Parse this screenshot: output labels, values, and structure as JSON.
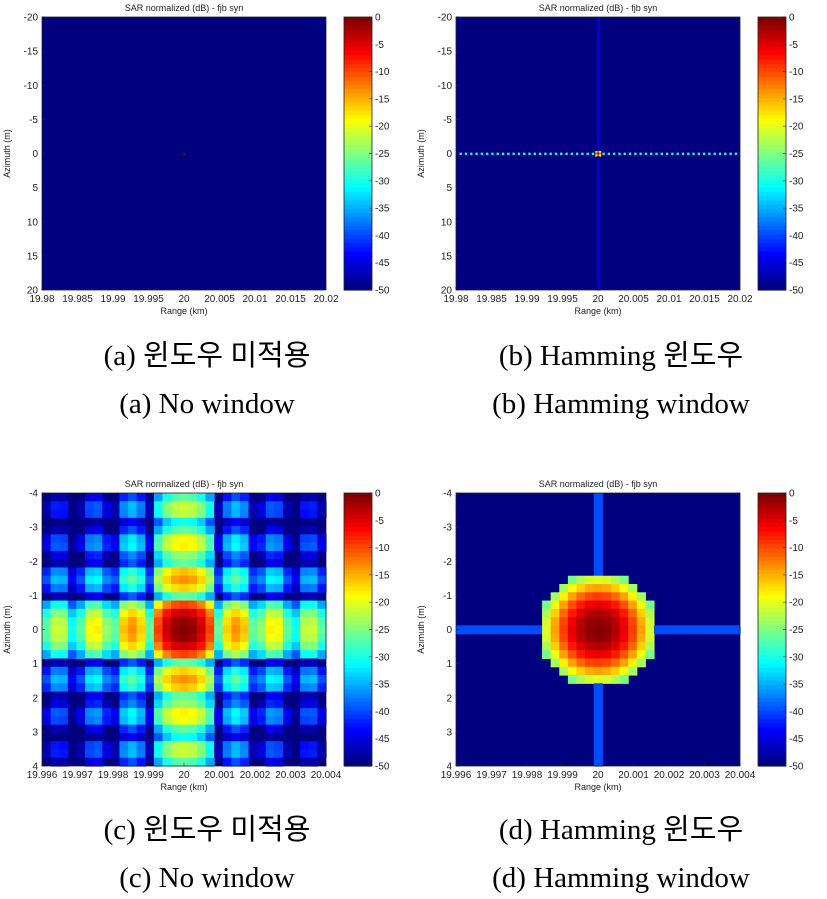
{
  "captions": [
    {
      "ko": "(a) 윈도우 미적용",
      "en": "(a) No window"
    },
    {
      "ko": "(b) Hamming 윈도우",
      "en": "(b) Hamming window"
    },
    {
      "ko": "(c) 윈도우 미적용",
      "en": "(c) No window"
    },
    {
      "ko": "(d) Hamming 윈도우",
      "en": "(d) Hamming window"
    }
  ],
  "chart_data": [
    {
      "type": "heatmap",
      "title": "SAR normalized (dB) - fjb syn",
      "xlabel": "Range (km)",
      "ylabel": "Azimuth (m)",
      "xlim": [
        19.98,
        20.02
      ],
      "ylim": [
        -20,
        20
      ],
      "xticks": [
        "19.98",
        "19.985",
        "19.99",
        "19.995",
        "20",
        "20.005",
        "20.01",
        "20.015",
        "20.02"
      ],
      "yticks": [
        "-20",
        "-15",
        "-10",
        "-5",
        "0",
        "5",
        "10",
        "15",
        "20"
      ],
      "colorbar": {
        "min": -50,
        "max": 0,
        "ticks": [
          "0",
          "-5",
          "-10",
          "-15",
          "-20",
          "-25",
          "-30",
          "-35",
          "-40",
          "-45",
          "-50"
        ]
      },
      "window": "none",
      "peak": {
        "x": 20,
        "y": 0,
        "value": 0
      }
    },
    {
      "type": "heatmap",
      "title": "SAR normalized (dB) - fjb syn",
      "xlabel": "Range (km)",
      "ylabel": "Azimuth (m)",
      "xlim": [
        19.98,
        20.02
      ],
      "ylim": [
        -20,
        20
      ],
      "xticks": [
        "19.98",
        "19.985",
        "19.99",
        "19.995",
        "20",
        "20.005",
        "20.01",
        "20.015",
        "20.02"
      ],
      "yticks": [
        "-20",
        "-15",
        "-10",
        "-5",
        "0",
        "5",
        "10",
        "15",
        "20"
      ],
      "colorbar": {
        "min": -50,
        "max": 0,
        "ticks": [
          "0",
          "-5",
          "-10",
          "-15",
          "-20",
          "-25",
          "-30",
          "-35",
          "-40",
          "-45",
          "-50"
        ]
      },
      "window": "hamming",
      "peak": {
        "x": 20,
        "y": 0,
        "value": 0
      }
    },
    {
      "type": "heatmap",
      "title": "SAR normalized (dB) - fjb syn",
      "xlabel": "Range (km)",
      "ylabel": "Azimuth (m)",
      "xlim": [
        19.996,
        20.004
      ],
      "ylim": [
        -4,
        4
      ],
      "xticks": [
        "19.996",
        "19.997",
        "19.998",
        "19.999",
        "20",
        "20.001",
        "20.002",
        "20.003",
        "20.004"
      ],
      "yticks": [
        "-4",
        "-3",
        "-2",
        "-1",
        "0",
        "1",
        "2",
        "3",
        "4"
      ],
      "colorbar": {
        "min": -50,
        "max": 0,
        "ticks": [
          "0",
          "-5",
          "-10",
          "-15",
          "-20",
          "-25",
          "-30",
          "-35",
          "-40",
          "-45",
          "-50"
        ]
      },
      "window": "none",
      "peak": {
        "x": 20,
        "y": 0,
        "value": 0
      }
    },
    {
      "type": "heatmap",
      "title": "SAR normalized (dB) - fjb syn",
      "xlabel": "Range (km)",
      "ylabel": "Azimuth (m)",
      "xlim": [
        19.996,
        20.004
      ],
      "ylim": [
        -4,
        4
      ],
      "xticks": [
        "19.996",
        "19.997",
        "19.998",
        "19.999",
        "20",
        "20.001",
        "20.002",
        "20.003",
        "20.004"
      ],
      "yticks": [
        "-4",
        "-3",
        "-2",
        "-1",
        "0",
        "1",
        "2",
        "3",
        "4"
      ],
      "colorbar": {
        "min": -50,
        "max": 0,
        "ticks": [
          "0",
          "-5",
          "-10",
          "-15",
          "-20",
          "-25",
          "-30",
          "-35",
          "-40",
          "-45",
          "-50"
        ]
      },
      "window": "hamming",
      "peak": {
        "x": 20,
        "y": 0,
        "value": 0
      }
    }
  ]
}
